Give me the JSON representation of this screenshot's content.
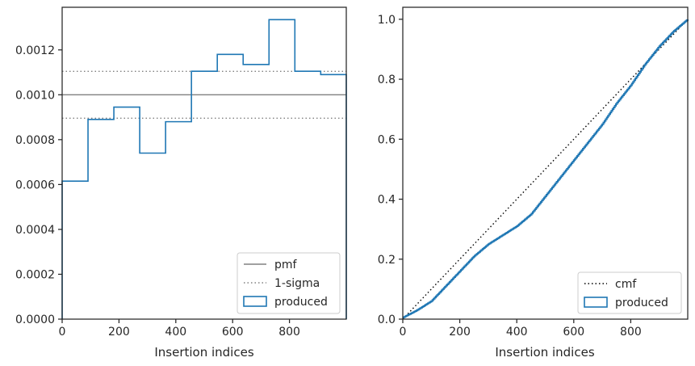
{
  "chart_data": [
    {
      "type": "histogram",
      "xlabel": "Insertion indices",
      "ylabel": "",
      "xlim": [
        0,
        1000
      ],
      "ylim": [
        0,
        0.00139
      ],
      "xticks": [
        0,
        200,
        400,
        600,
        800
      ],
      "xtick_labels": [
        "0",
        "200",
        "400",
        "600",
        "800"
      ],
      "yticks": [
        0,
        0.0002,
        0.0004,
        0.0006,
        0.0008,
        0.001,
        0.0012
      ],
      "ytick_labels": [
        "0.0000",
        "0.0002",
        "0.0004",
        "0.0006",
        "0.0008",
        "0.0010",
        "0.0012"
      ],
      "bin_edges": [
        0,
        91,
        182,
        273,
        364,
        455,
        546,
        637,
        728,
        819,
        910,
        1000
      ],
      "values": [
        0.000615,
        0.00089,
        0.000945,
        0.00074,
        0.00088,
        0.001105,
        0.00118,
        0.001135,
        0.001335,
        0.001105,
        0.00109
      ],
      "pmf": 0.001,
      "sigma_upper": 0.0011045,
      "sigma_lower": 0.0008955,
      "legend": {
        "placement": "lower-right",
        "entries": [
          {
            "label": "pmf",
            "style": "solid",
            "color": "#808080"
          },
          {
            "label": "1-sigma",
            "style": "dotted",
            "color": "#808080"
          },
          {
            "label": "produced",
            "style": "step",
            "color": "#1f77b4"
          }
        ]
      }
    },
    {
      "type": "line",
      "xlabel": "Insertion indices",
      "ylabel": "",
      "xlim": [
        0,
        1000
      ],
      "ylim": [
        0,
        1.04
      ],
      "xticks": [
        0,
        200,
        400,
        600,
        800
      ],
      "xtick_labels": [
        "0",
        "200",
        "400",
        "600",
        "800"
      ],
      "yticks": [
        0,
        0.2,
        0.4,
        0.6,
        0.8,
        1.0
      ],
      "ytick_labels": [
        "0.0",
        "0.2",
        "0.4",
        "0.6",
        "0.8",
        "1.0"
      ],
      "series": [
        {
          "style": "dotted",
          "color": "#000000",
          "x": [
            0,
            1000
          ],
          "y": [
            0,
            1.0
          ]
        },
        {
          "style": "step",
          "color": "#1f77b4",
          "x": [
            0,
            50,
            100,
            150,
            200,
            250,
            300,
            350,
            400,
            450,
            500,
            550,
            600,
            650,
            700,
            750,
            800,
            850,
            900,
            950,
            1000
          ],
          "y": [
            0.005,
            0.03,
            0.06,
            0.11,
            0.16,
            0.21,
            0.25,
            0.28,
            0.31,
            0.35,
            0.41,
            0.47,
            0.53,
            0.59,
            0.65,
            0.72,
            0.78,
            0.85,
            0.91,
            0.96,
            1.0
          ]
        }
      ],
      "legend": {
        "placement": "lower-right",
        "entries": [
          {
            "label": "cmf",
            "style": "dotted",
            "color": "#000000"
          },
          {
            "label": "produced",
            "style": "step",
            "color": "#1f77b4"
          }
        ]
      }
    }
  ]
}
